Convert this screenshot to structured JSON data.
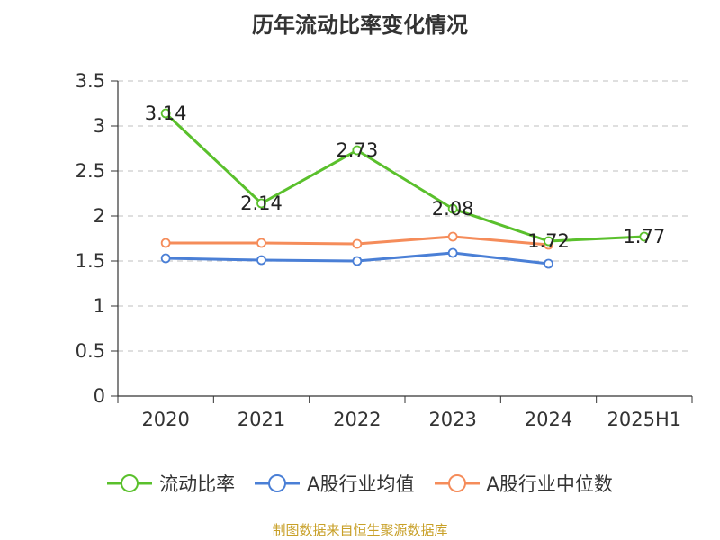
{
  "title": "历年流动比率变化情况",
  "source": "制图数据来自恒生聚源数据库",
  "chart_data": {
    "type": "line",
    "categories": [
      "2020",
      "2021",
      "2022",
      "2023",
      "2024",
      "2025H1"
    ],
    "ylim": [
      0,
      3.5
    ],
    "yticks": [
      "0",
      "0.5",
      "1",
      "1.5",
      "2",
      "2.5",
      "3",
      "3.5"
    ],
    "grid": true,
    "legend_position": "bottom",
    "series": [
      {
        "name": "流动比率",
        "color": "#5ac02c",
        "values": [
          3.14,
          2.14,
          2.73,
          2.08,
          1.72,
          1.77
        ],
        "labels": [
          "3.14",
          "2.14",
          "2.73",
          "2.08",
          "1.72",
          "1.77"
        ]
      },
      {
        "name": "A股行业均值",
        "color": "#4a7fd6",
        "values": [
          1.53,
          1.51,
          1.5,
          1.59,
          1.47,
          null
        ]
      },
      {
        "name": "A股行业中位数",
        "color": "#f58c5a",
        "values": [
          1.7,
          1.7,
          1.69,
          1.77,
          1.68,
          null
        ]
      }
    ]
  }
}
